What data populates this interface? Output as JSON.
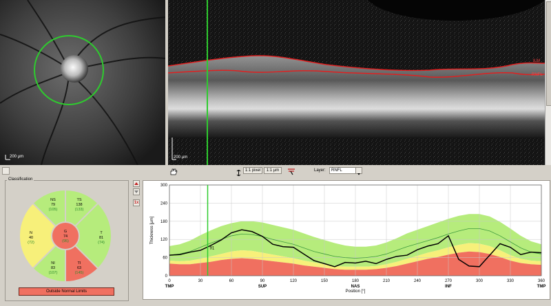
{
  "fundus": {
    "scale_label": "200 µm"
  },
  "oct": {
    "scale_label": "200 µm",
    "layer_ilm": "ILM",
    "layer_rnfl": "RNFL"
  },
  "toolbar": {
    "pixel_btn": "1:1 pixel",
    "um_btn": "1:1 µm",
    "layer_label": "Layer:",
    "layer_value": "RNFL"
  },
  "classification": {
    "title": "Classification",
    "sectors": {
      "NS": {
        "name": "NS",
        "value": "79",
        "ref": "(105)"
      },
      "TS": {
        "name": "TS",
        "value": "138",
        "ref": "(133)"
      },
      "N": {
        "name": "N",
        "value": "40",
        "ref": "(72)"
      },
      "G": {
        "name": "G",
        "value": "74",
        "ref": "(95)"
      },
      "T": {
        "name": "T",
        "value": "81",
        "ref": "(74)"
      },
      "NI": {
        "name": "NI",
        "value": "83",
        "ref": "(107)"
      },
      "TI": {
        "name": "TI",
        "value": "63",
        "ref": "(145)"
      }
    },
    "result": "Outside Normal Limits"
  },
  "side_buttons": {
    "zoom": "1x"
  },
  "colors": {
    "normal": "#b6ec7c",
    "borderline": "#f7f07a",
    "outside": "#f07060",
    "scan_line": "#2ecc2e"
  },
  "chart_data": {
    "type": "area",
    "ylabel": "Thickness [µm]",
    "xlabel": "Position [°]",
    "ylim": [
      0,
      300
    ],
    "xlim": [
      0,
      360
    ],
    "y_ticks": [
      "0",
      "60",
      "120",
      "180",
      "240",
      "300"
    ],
    "x_ticks": [
      "0",
      "30",
      "60",
      "90",
      "120",
      "150",
      "180",
      "210",
      "240",
      "270",
      "300",
      "330",
      "360"
    ],
    "x_region_labels": [
      {
        "x": 0,
        "label": "TMP"
      },
      {
        "x": 90,
        "label": "SUP"
      },
      {
        "x": 180,
        "label": "NAS"
      },
      {
        "x": 270,
        "label": "INF"
      },
      {
        "x": 360,
        "label": "TMP"
      }
    ],
    "cursor_x": 37,
    "cursor_value": "91",
    "x": [
      0,
      10,
      20,
      30,
      40,
      50,
      60,
      70,
      80,
      90,
      100,
      110,
      120,
      130,
      140,
      150,
      160,
      170,
      180,
      190,
      200,
      210,
      220,
      230,
      240,
      250,
      260,
      270,
      280,
      290,
      300,
      310,
      320,
      330,
      340,
      350,
      360
    ],
    "series": [
      {
        "name": "RNFL",
        "values": [
          68,
          70,
          78,
          84,
          100,
          118,
          142,
          152,
          146,
          130,
          104,
          96,
          94,
          72,
          50,
          40,
          30,
          44,
          42,
          48,
          40,
          54,
          64,
          68,
          86,
          98,
          106,
          132,
          54,
          32,
          30,
          68,
          106,
          94,
          70,
          78,
          76
        ]
      },
      {
        "name": "mean",
        "values": [
          68,
          72,
          80,
          94,
          108,
          120,
          132,
          138,
          136,
          130,
          120,
          112,
          104,
          92,
          80,
          72,
          64,
          60,
          58,
          60,
          64,
          72,
          84,
          96,
          106,
          116,
          126,
          138,
          148,
          156,
          156,
          148,
          132,
          112,
          92,
          78,
          72
        ]
      }
    ],
    "bands": {
      "outside_upper": [
        40,
        38,
        38,
        42,
        46,
        52,
        56,
        58,
        56,
        52,
        48,
        44,
        40,
        34,
        30,
        26,
        22,
        20,
        20,
        20,
        22,
        26,
        32,
        40,
        48,
        56,
        62,
        70,
        76,
        80,
        78,
        72,
        62,
        50,
        42,
        38,
        36
      ],
      "borderline_upper": [
        50,
        48,
        50,
        56,
        64,
        72,
        80,
        84,
        82,
        76,
        70,
        64,
        58,
        50,
        44,
        38,
        32,
        30,
        30,
        30,
        32,
        38,
        46,
        56,
        66,
        76,
        84,
        94,
        102,
        108,
        106,
        98,
        84,
        68,
        56,
        50,
        48
      ],
      "normal_upper": [
        98,
        104,
        116,
        134,
        150,
        164,
        174,
        180,
        180,
        176,
        168,
        160,
        152,
        140,
        128,
        118,
        108,
        100,
        96,
        96,
        100,
        110,
        124,
        140,
        152,
        164,
        176,
        188,
        198,
        204,
        204,
        196,
        178,
        156,
        132,
        114,
        104
      ]
    }
  }
}
